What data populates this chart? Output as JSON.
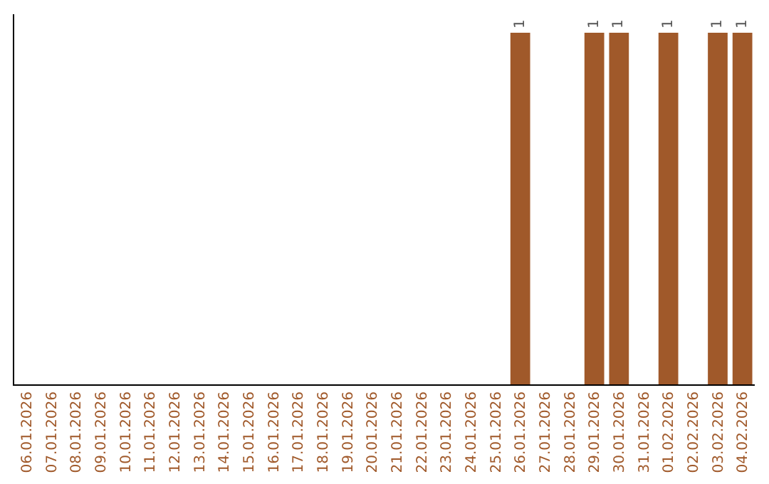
{
  "chart_data": {
    "type": "bar",
    "categories": [
      "06.01.2026",
      "07.01.2026",
      "08.01.2026",
      "09.01.2026",
      "10.01.2026",
      "11.01.2026",
      "12.01.2026",
      "13.01.2026",
      "14.01.2026",
      "15.01.2026",
      "16.01.2026",
      "17.01.2026",
      "18.01.2026",
      "19.01.2026",
      "20.01.2026",
      "21.01.2026",
      "22.01.2026",
      "23.01.2026",
      "24.01.2026",
      "25.01.2026",
      "26.01.2026",
      "27.01.2026",
      "28.01.2026",
      "29.01.2026",
      "30.01.2026",
      "31.01.2026",
      "01.02.2026",
      "02.02.2026",
      "03.02.2026",
      "04.02.2026"
    ],
    "values": [
      null,
      null,
      null,
      null,
      null,
      null,
      null,
      null,
      null,
      null,
      null,
      null,
      null,
      null,
      null,
      null,
      null,
      null,
      null,
      null,
      1,
      null,
      null,
      1,
      1,
      null,
      1,
      null,
      1,
      1
    ],
    "color": "#a0592a",
    "data_labels": true,
    "tick_labels": "x"
  }
}
